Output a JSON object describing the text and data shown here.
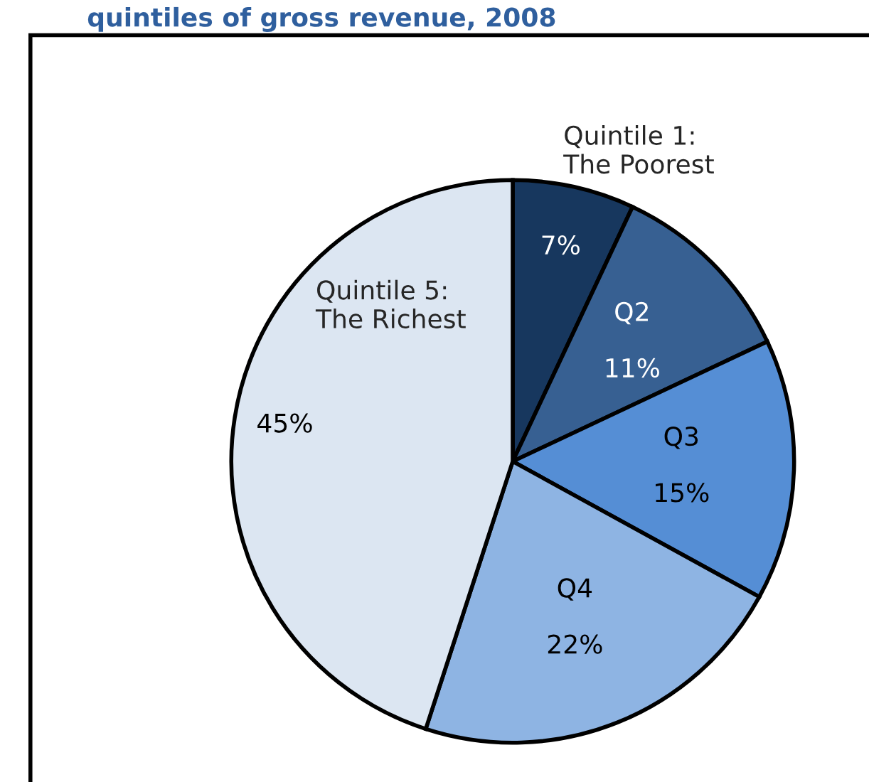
{
  "chart_data": {
    "type": "pie",
    "title": "quintiles of gross revenue, 2008",
    "categories": [
      "Quintile 1:\nThe Poorest",
      "Q2",
      "Q3",
      "Q4",
      "Quintile 5:\nThe Richest"
    ],
    "values": [
      7,
      11,
      15,
      22,
      45
    ],
    "colors": [
      "#17375e",
      "#376092",
      "#558ed5",
      "#8eb4e3",
      "#dce6f2"
    ],
    "value_labels": [
      "7%",
      "11%",
      "15%",
      "22%",
      "45%"
    ]
  }
}
